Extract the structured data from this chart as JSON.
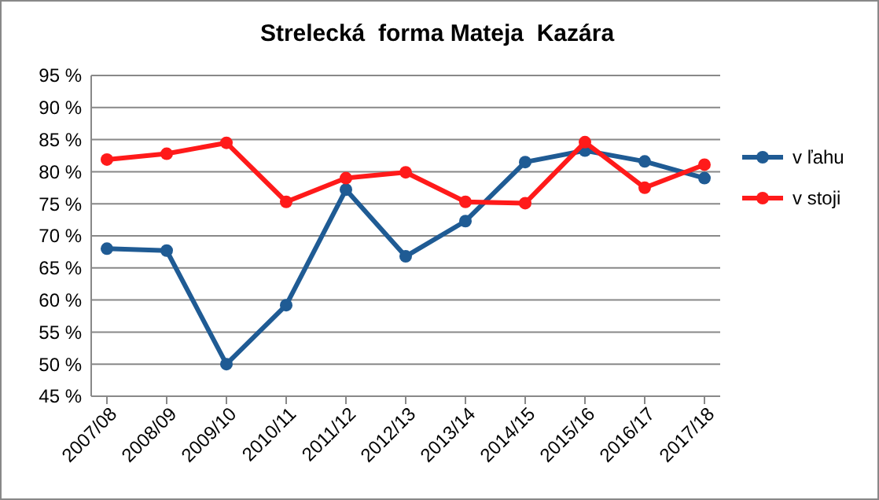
{
  "chart_data": {
    "type": "line",
    "title": "Strelecká  forma Mateja  Kazára",
    "categories": [
      "2007/08",
      "2008/09",
      "2009/10",
      "2010/11",
      "2011/12",
      "2012/13",
      "2013/14",
      "2014/15",
      "2015/16",
      "2016/17",
      "2017/18"
    ],
    "series": [
      {
        "name": "v ľahu",
        "color": "#1f5b94",
        "values": [
          68,
          67.7,
          50,
          59.2,
          77.2,
          66.8,
          72.3,
          81.5,
          83.3,
          81.6,
          79
        ]
      },
      {
        "name": "v stoji",
        "color": "#ff1a1a",
        "values": [
          81.9,
          82.8,
          84.5,
          75.3,
          79,
          79.9,
          75.3,
          75.1,
          84.6,
          77.5,
          81.1
        ]
      }
    ],
    "ylim": [
      45,
      95
    ],
    "yticks": [
      {
        "value": 45,
        "label": "45 %"
      },
      {
        "value": 50,
        "label": "50 %"
      },
      {
        "value": 55,
        "label": "55 %"
      },
      {
        "value": 60,
        "label": "60 %"
      },
      {
        "value": 65,
        "label": "65 %"
      },
      {
        "value": 70,
        "label": "70 %"
      },
      {
        "value": 75,
        "label": "75 %"
      },
      {
        "value": 80,
        "label": "80 %"
      },
      {
        "value": 85,
        "label": "85 %"
      },
      {
        "value": 90,
        "label": "90 %"
      },
      {
        "value": 95,
        "label": "95 %"
      }
    ],
    "grid": "y",
    "legend": "right",
    "marker": "circle",
    "line_style": "solid"
  }
}
